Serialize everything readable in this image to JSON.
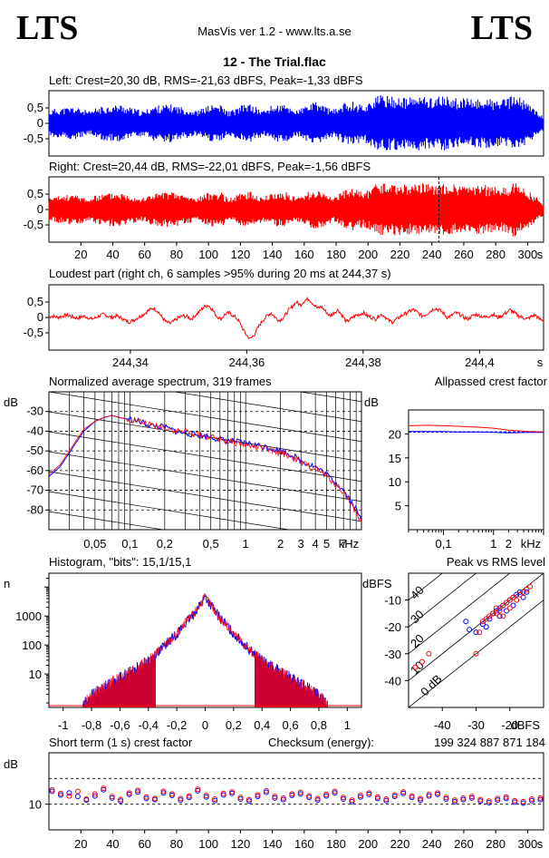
{
  "header": {
    "logo_left": "LTS",
    "logo_right": "LTS",
    "app": "MasVis ver 1.2 - www.lts.a.se",
    "track": "12 - The Trial.flac"
  },
  "colors": {
    "left": "#0000ff",
    "right": "#ff0000",
    "axis": "#000000"
  },
  "chart_data": [
    {
      "type": "area",
      "title": "Left: Crest=20,30 dB, RMS=-21,63 dBFS, Peak=-1,33 dBFS",
      "channel": "left",
      "y_ticks": [
        "0,5",
        "0",
        "-0,5"
      ],
      "ylim": [
        -1,
        1
      ],
      "xlim": [
        0,
        310
      ],
      "envelope_peak": [
        0.42,
        0.48,
        0.5,
        0.52,
        0.55,
        0.5,
        0.45,
        0.38,
        0.52,
        0.55,
        0.58,
        0.6,
        0.62,
        0.55,
        0.5,
        0.45,
        0.4,
        0.55,
        0.58,
        0.6,
        0.62,
        0.6,
        0.55,
        0.5,
        0.45,
        0.42,
        0.52,
        0.6,
        0.62,
        0.58,
        0.4,
        0.45,
        0.55,
        0.65,
        0.62,
        0.5,
        0.42,
        0.55,
        0.6,
        0.62,
        0.58,
        0.48,
        0.45,
        0.58,
        0.65,
        0.7,
        0.62,
        0.5,
        0.45,
        0.62,
        0.7,
        0.72,
        0.65,
        0.6,
        0.75,
        0.9,
        0.92,
        0.9,
        0.88,
        0.85,
        0.82,
        0.86,
        0.9,
        0.88,
        0.85,
        0.88,
        0.9,
        0.86,
        0.84,
        0.8,
        0.82,
        0.78,
        0.8,
        0.82,
        0.8,
        0.75,
        0.78,
        0.8,
        0.95,
        0.85,
        0.7,
        0.55,
        0.4,
        0.2
      ]
    },
    {
      "type": "area",
      "title": "Right: Crest=20,44 dB, RMS=-22,01 dBFS, Peak=-1,56 dBFS",
      "channel": "right",
      "y_ticks": [
        "0,5",
        "0",
        "-0,5"
      ],
      "x_ticks": [
        20,
        40,
        60,
        80,
        100,
        120,
        140,
        160,
        180,
        200,
        220,
        240,
        260,
        280,
        300
      ],
      "x_unit": "s",
      "ylim": [
        -1,
        1
      ],
      "xlim": [
        0,
        310
      ],
      "marker_x": 244.37,
      "envelope_peak": [
        0.38,
        0.42,
        0.45,
        0.48,
        0.5,
        0.46,
        0.42,
        0.36,
        0.48,
        0.52,
        0.55,
        0.56,
        0.58,
        0.52,
        0.48,
        0.42,
        0.38,
        0.52,
        0.55,
        0.56,
        0.58,
        0.56,
        0.52,
        0.48,
        0.42,
        0.4,
        0.5,
        0.56,
        0.58,
        0.55,
        0.38,
        0.42,
        0.52,
        0.6,
        0.58,
        0.48,
        0.4,
        0.52,
        0.56,
        0.58,
        0.55,
        0.45,
        0.42,
        0.55,
        0.6,
        0.65,
        0.58,
        0.48,
        0.42,
        0.58,
        0.65,
        0.68,
        0.62,
        0.58,
        0.7,
        0.85,
        0.88,
        0.86,
        0.84,
        0.82,
        0.8,
        0.83,
        0.86,
        0.85,
        0.82,
        0.85,
        0.86,
        0.83,
        0.81,
        0.78,
        0.8,
        0.76,
        0.78,
        0.8,
        0.78,
        0.73,
        0.76,
        0.78,
        0.9,
        0.8,
        0.66,
        0.52,
        0.38,
        0.18
      ]
    },
    {
      "type": "line",
      "title": "Loudest part (right ch, 6 samples >95% during 20 ms at 244,37 s)",
      "channel": "right",
      "y_ticks": [
        "0,5",
        "0",
        "-0,5"
      ],
      "x_ticks": [
        "244,34",
        "244,36",
        "244,38",
        "244,4"
      ],
      "x_unit": "s",
      "xlim": [
        244.326,
        244.411
      ],
      "ylim": [
        -1,
        1
      ],
      "values": [
        0.02,
        0.05,
        0.0,
        0.03,
        0.08,
        0.05,
        0.0,
        -0.02,
        0.04,
        0.02,
        -0.05,
        -0.02,
        0.05,
        0.1,
        0.05,
        0.0,
        0.05,
        0.0,
        -0.08,
        -0.15,
        -0.1,
        -0.02,
        0.05,
        0.15,
        0.25,
        0.3,
        0.2,
        0.0,
        -0.15,
        -0.2,
        -0.1,
        0.0,
        0.05,
        0.02,
        -0.05,
        0.08,
        0.2,
        0.35,
        0.4,
        0.25,
        0.05,
        -0.05,
        0.1,
        0.15,
        0.05,
        -0.05,
        -0.3,
        -0.55,
        -0.7,
        -0.55,
        -0.3,
        -0.1,
        0.05,
        0.15,
        0.0,
        -0.1,
        0.0,
        0.2,
        0.35,
        0.5,
        0.4,
        0.55,
        0.6,
        0.45,
        0.3,
        0.35,
        0.2,
        0.05,
        0.15,
        0.25,
        0.05,
        -0.15,
        -0.05,
        0.05,
        0.1,
        0.15,
        0.05,
        0.0,
        -0.05,
        0.1,
        0.05,
        -0.1,
        -0.15,
        -0.05,
        0.05,
        0.12,
        0.2,
        0.25,
        0.15,
        0.05,
        0.1,
        0.2,
        0.3,
        0.25,
        0.15,
        0.0,
        0.05,
        0.15,
        0.1,
        0.0,
        -0.05,
        0.05,
        0.1,
        0.05,
        0.0,
        0.05,
        0.1,
        0.0,
        0.05,
        0.15,
        0.25,
        0.15,
        0.05,
        0.0,
        -0.05,
        0.02,
        0.08,
        -0.05,
        -0.1
      ]
    },
    {
      "type": "line",
      "title": "Normalized average spectrum, 319 frames",
      "y_unit": "dB",
      "y_ticks": [
        -30,
        -40,
        -50,
        -60,
        -70,
        -80
      ],
      "ylim": [
        -90,
        -20
      ],
      "x_ticks": [
        "0,05",
        "0,1",
        "0,2",
        "0,5",
        "1",
        "2",
        "3",
        "4",
        "5",
        "7"
      ],
      "x_unit": "kHz",
      "x_scale": "log",
      "xlim": [
        0.02,
        10
      ],
      "x": [
        0.02,
        0.025,
        0.03,
        0.035,
        0.04,
        0.05,
        0.06,
        0.07,
        0.08,
        0.1,
        0.12,
        0.15,
        0.2,
        0.25,
        0.3,
        0.4,
        0.5,
        0.7,
        1.0,
        1.5,
        2.0,
        2.5,
        3.0,
        4.0,
        5.0,
        6.0,
        7.0,
        8.0,
        9.0,
        10.0
      ],
      "series": [
        {
          "channel": "left",
          "values": [
            -63,
            -58,
            -51,
            -45,
            -40,
            -35,
            -33,
            -32,
            -33,
            -34,
            -35,
            -37,
            -38,
            -40,
            -41,
            -42,
            -43,
            -45,
            -46,
            -48,
            -50,
            -52,
            -55,
            -58,
            -62,
            -66,
            -70,
            -75,
            -80,
            -85
          ]
        },
        {
          "channel": "right",
          "values": [
            -62,
            -57,
            -50,
            -44,
            -39,
            -35,
            -33,
            -32,
            -33,
            -34,
            -35,
            -37,
            -38,
            -40,
            -40,
            -42,
            -43,
            -45,
            -47,
            -49,
            -51,
            -53,
            -56,
            -59,
            -63,
            -67,
            -71,
            -76,
            -81,
            -86
          ]
        }
      ]
    },
    {
      "type": "line",
      "title": "Allpassed crest factor",
      "y_unit": "dB",
      "y_ticks": [
        20,
        15,
        10,
        5
      ],
      "ylim": [
        0,
        25
      ],
      "x_ticks": [
        "0,1",
        "1",
        "2"
      ],
      "x_unit": "kHz",
      "x_scale": "log",
      "xlim": [
        0.02,
        10
      ],
      "x": [
        0.02,
        0.05,
        0.1,
        0.2,
        0.5,
        1,
        2,
        5,
        10
      ],
      "series": [
        {
          "channel": "left",
          "values": [
            20.5,
            20.5,
            20.5,
            20.4,
            20.4,
            20.3,
            20.2,
            20.3,
            20.3
          ]
        },
        {
          "channel": "right",
          "values": [
            21.7,
            21.8,
            21.7,
            21.6,
            21.4,
            21.2,
            20.8,
            20.5,
            20.4
          ]
        }
      ],
      "reference": 20.4
    },
    {
      "type": "line",
      "title": "Histogram, \"bits\": 15,1/15,1",
      "y_unit": "n",
      "y_scale": "log",
      "y_ticks": [
        1000,
        100,
        10
      ],
      "ylim": [
        0.7,
        30000
      ],
      "x_ticks": [
        "-1",
        "-0,8",
        "-0,6",
        "-0,4",
        "-0,2",
        "0",
        "0,2",
        "0,4",
        "0,6",
        "0,8",
        "1"
      ],
      "xlim": [
        -1.1,
        1.1
      ],
      "x": [
        -0.86,
        -0.8,
        -0.7,
        -0.6,
        -0.5,
        -0.4,
        -0.3,
        -0.2,
        -0.1,
        -0.05,
        0,
        0.05,
        0.1,
        0.2,
        0.3,
        0.4,
        0.5,
        0.6,
        0.7,
        0.8,
        0.86
      ],
      "series": [
        {
          "channel": "left",
          "values": [
            1,
            2,
            4,
            8,
            15,
            30,
            80,
            250,
            900,
            2000,
            4500,
            2000,
            900,
            250,
            80,
            30,
            15,
            8,
            4,
            2,
            1
          ]
        },
        {
          "channel": "right",
          "values": [
            1,
            2,
            4,
            8,
            15,
            30,
            80,
            250,
            900,
            2000,
            4500,
            2000,
            900,
            250,
            80,
            30,
            15,
            8,
            4,
            2,
            1
          ]
        }
      ]
    },
    {
      "type": "scatter",
      "title": "Peak vs RMS level",
      "y_unit": "dBFS",
      "x_unit": "dBFS",
      "y_ticks": [
        -10,
        -20,
        -30,
        -40
      ],
      "x_ticks": [
        -40,
        -30,
        -20
      ],
      "xlim": [
        -50,
        -10
      ],
      "ylim": [
        -50,
        0
      ],
      "crest_lines": [
        "0 dB",
        "10",
        "20",
        "30",
        "40"
      ],
      "series": [
        {
          "channel": "left",
          "x": [
            -33,
            -32,
            -30,
            -28,
            -27,
            -26,
            -25,
            -24,
            -23,
            -23,
            -22,
            -21,
            -21,
            -20,
            -19,
            -19,
            -18,
            -17,
            -16,
            -15
          ],
          "y": [
            -18,
            -21,
            -22,
            -19,
            -20,
            -17,
            -15,
            -14,
            -13,
            -16,
            -12,
            -11,
            -14,
            -10,
            -9,
            -12,
            -8,
            -7,
            -9,
            -7
          ]
        },
        {
          "channel": "right",
          "x": [
            -48,
            -46,
            -44,
            -30,
            -29,
            -28,
            -27,
            -26,
            -25,
            -24,
            -24,
            -23,
            -22,
            -22,
            -21,
            -20,
            -20,
            -19,
            -18,
            -17,
            -16,
            -15,
            -14
          ],
          "y": [
            -35,
            -33,
            -30,
            -30,
            -22,
            -18,
            -17,
            -16,
            -15,
            -15,
            -13,
            -14,
            -12,
            -16,
            -11,
            -10,
            -13,
            -9,
            -10,
            -8,
            -7,
            -6,
            -5
          ]
        }
      ]
    },
    {
      "type": "scatter",
      "title": "Short term (1 s) crest factor",
      "checksum_label": "Checksum (energy):",
      "checksum_value": "199 324 887 871 184",
      "y_unit": "dB",
      "y_ticks": [
        10
      ],
      "ylim": [
        5,
        20
      ],
      "x_ticks": [
        20,
        40,
        60,
        80,
        100,
        120,
        140,
        160,
        180,
        200,
        220,
        240,
        260,
        280,
        300
      ],
      "x_unit": "s",
      "xlim": [
        0,
        310
      ],
      "series": [
        {
          "channel": "left",
          "values": [
            12.5,
            11.8,
            12.2,
            11.5,
            10.8,
            11.6,
            12.8,
            11.2,
            10.6,
            11.9,
            12.4,
            11.1,
            10.9,
            12.2,
            11.7,
            10.8,
            11.3,
            12.6,
            11.4,
            10.7,
            11.8,
            12.1,
            11.0,
            10.6,
            11.5,
            12.3,
            11.2,
            10.9,
            11.7,
            12.0,
            11.3,
            10.8,
            11.6,
            12.2,
            11.0,
            10.5,
            11.4,
            11.9,
            11.1,
            10.7,
            11.5,
            12.1,
            11.3,
            10.8,
            11.6,
            11.9,
            11.0,
            10.5,
            10.9,
            11.2,
            10.6,
            10.3,
            10.8,
            11.1,
            10.4,
            10.2,
            10.7,
            10.9
          ]
        },
        {
          "channel": "right",
          "values": [
            12.8,
            12.1,
            11.6,
            12.5,
            11.0,
            12.0,
            13.1,
            11.5,
            10.9,
            12.2,
            12.7,
            11.4,
            11.1,
            12.5,
            12.0,
            11.1,
            11.6,
            12.9,
            11.7,
            11.0,
            12.1,
            12.4,
            11.3,
            10.9,
            11.8,
            12.6,
            11.5,
            11.2,
            12.0,
            12.3,
            11.6,
            11.1,
            11.9,
            12.5,
            11.3,
            10.8,
            11.7,
            12.2,
            11.4,
            11.0,
            11.8,
            12.4,
            11.6,
            11.1,
            11.9,
            12.2,
            11.3,
            10.8,
            11.2,
            11.5,
            10.9,
            10.6,
            11.1,
            11.4,
            10.7,
            10.5,
            11.0,
            11.2
          ]
        }
      ]
    }
  ]
}
